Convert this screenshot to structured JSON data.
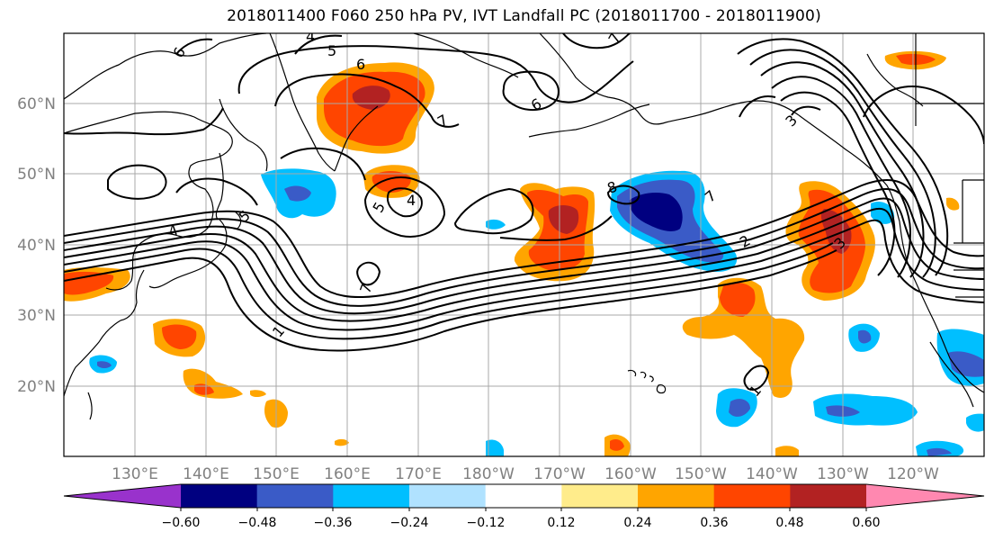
{
  "title": "2018011400 F060 250 hPa PV, IVT Landfall PC (2018011700 - 2018011900)",
  "map": {
    "lat_labels": [
      "60°N",
      "50°N",
      "40°N",
      "30°N",
      "20°N"
    ],
    "lon_labels": [
      "130°E",
      "140°E",
      "150°E",
      "160°E",
      "170°E",
      "180°W",
      "170°W",
      "160°W",
      "150°W",
      "140°W",
      "130°W",
      "120°W"
    ],
    "contour_labels": [
      "4",
      "5",
      "6",
      "6",
      "7",
      "7",
      "6",
      "4",
      "5",
      "4",
      "7",
      "8",
      "7",
      "2",
      "5",
      "3",
      "1",
      "1",
      "3"
    ],
    "colors": {
      "land_outline": "#000000",
      "grid": "#a9a9a9"
    }
  },
  "colorbar": {
    "tick_labels": [
      "−0.60",
      "−0.48",
      "−0.36",
      "−0.24",
      "−0.12",
      "0.12",
      "0.24",
      "0.36",
      "0.48",
      "0.60"
    ],
    "colors": [
      "#9932cc",
      "#000080",
      "#3a5bc7",
      "#00bfff",
      "#b0e2ff",
      "#ffffff",
      "#ffec8b",
      "#ffa500",
      "#ff4500",
      "#b22222",
      "#ff88b0"
    ]
  }
}
